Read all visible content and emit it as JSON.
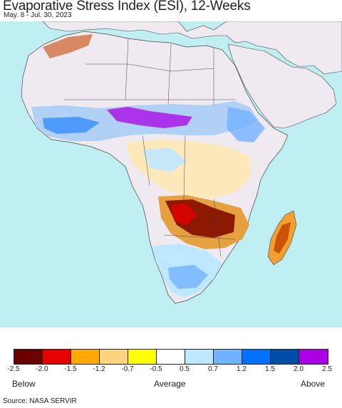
{
  "header": {
    "title": "Evaporative Stress Index (ESI), 12-Weeks",
    "date_range": "May. 8 - Jul. 30, 2023"
  },
  "legend": {
    "bins": [
      {
        "color": "#6b0000"
      },
      {
        "color": "#e60000"
      },
      {
        "color": "#ffaa00"
      },
      {
        "color": "#ffd37f"
      },
      {
        "color": "#ffff00"
      },
      {
        "color": "#ffffff"
      },
      {
        "color": "#bee8ff"
      },
      {
        "color": "#73b2ff"
      },
      {
        "color": "#0070ff"
      },
      {
        "color": "#004da8"
      },
      {
        "color": "#aa00e6"
      }
    ],
    "ticks": [
      "-2.5",
      "-2.0",
      "-1.5",
      "-1.2",
      "-0.7",
      "-0.5",
      "0.5",
      "0.7",
      "1.2",
      "1.5",
      "2.0",
      "2.5"
    ],
    "below_label": "Below",
    "average_label": "Average",
    "above_label": "Above"
  },
  "footer": {
    "source": "Source: NASA SERVIR"
  }
}
